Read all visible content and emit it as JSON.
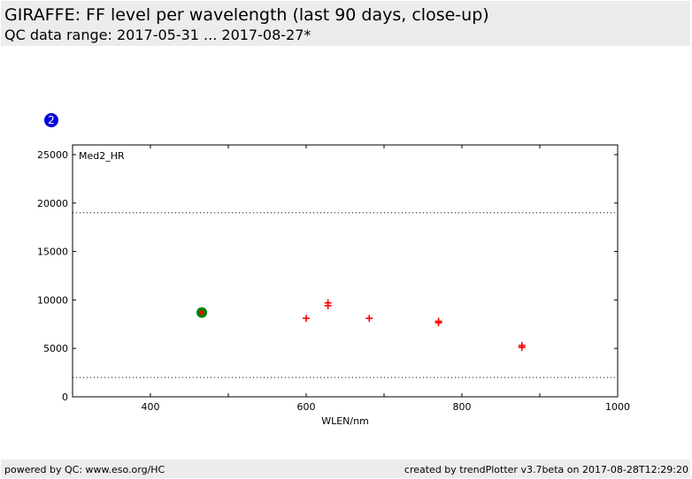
{
  "header": {
    "title": "GIRAFFE: FF level per wavelength (last 90 days, close-up)",
    "subtitle": "QC data range: 2017-05-31 ... 2017-08-27*"
  },
  "footer": {
    "left": "powered by QC: www.eso.org/HC",
    "right": "created by trendPlotter v3.7beta on 2017-08-28T12:29:20"
  },
  "badge": {
    "label": "2",
    "color": "#0000dd"
  },
  "chart_data": {
    "type": "scatter",
    "series_label": "Med2_HR",
    "xlabel": "WLEN/nm",
    "ylabel": "",
    "xlim": [
      300,
      1000
    ],
    "ylim": [
      0,
      26000
    ],
    "xticks": [
      400,
      600,
      800,
      1000
    ],
    "yticks": [
      0,
      5000,
      10000,
      15000,
      20000,
      25000
    ],
    "thresholds": [
      19000,
      2000
    ],
    "threshold_style": "dotted",
    "point_color": "#ff0000",
    "highlight_color": "#008000",
    "points": [
      {
        "x": 466,
        "y": 8700,
        "highlight": true
      },
      {
        "x": 600,
        "y": 8100
      },
      {
        "x": 628,
        "y": 9700
      },
      {
        "x": 628,
        "y": 9400
      },
      {
        "x": 681,
        "y": 8100
      },
      {
        "x": 770,
        "y": 7800
      },
      {
        "x": 770,
        "y": 7650
      },
      {
        "x": 877,
        "y": 5300
      },
      {
        "x": 877,
        "y": 5100
      }
    ],
    "grid": false
  }
}
